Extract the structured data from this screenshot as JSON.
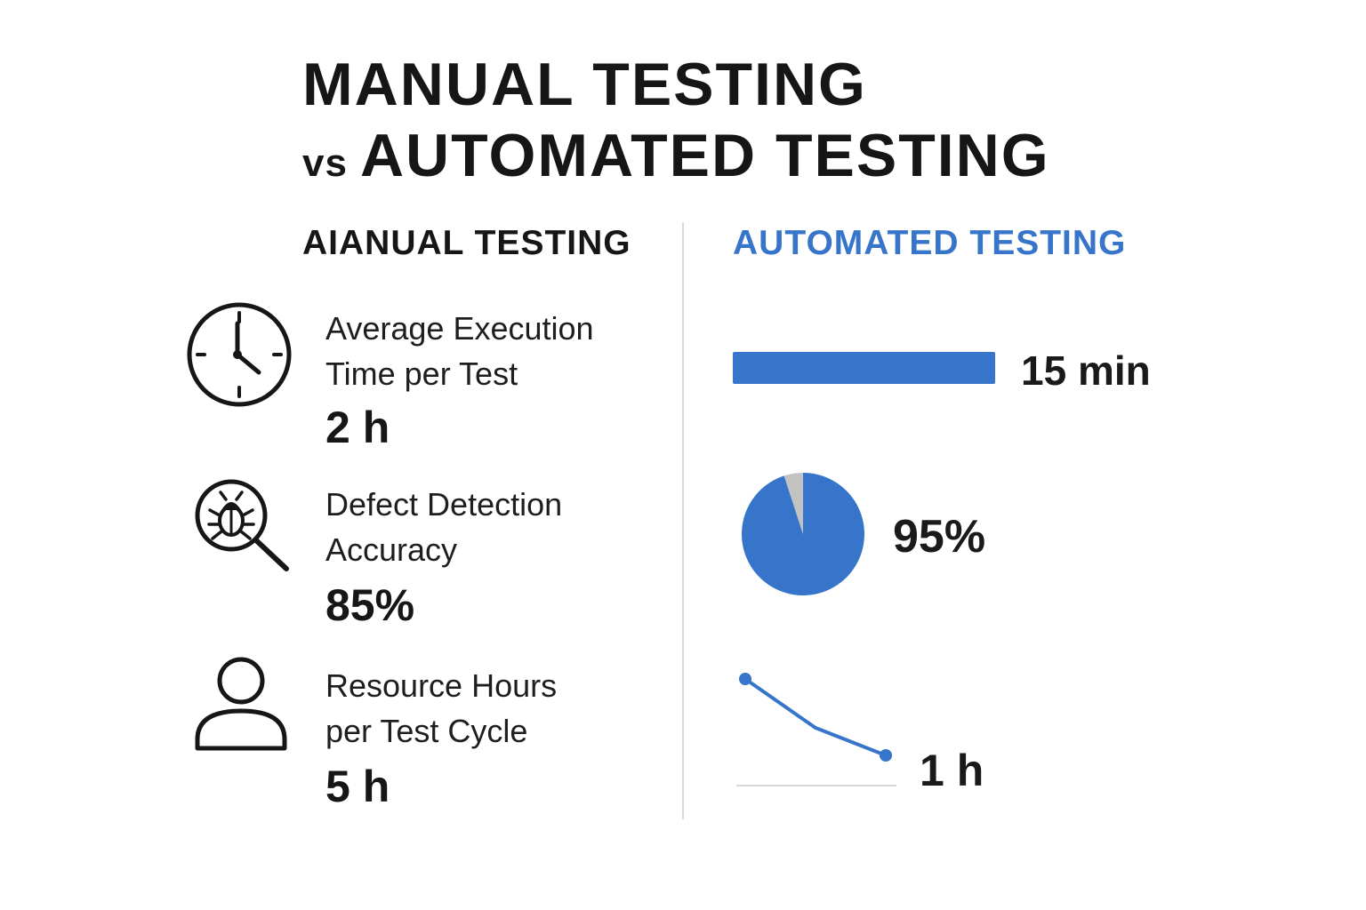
{
  "title": {
    "line1": "MANUAL TESTING",
    "vs": "vs",
    "line2": "AUTOMATED TESTING"
  },
  "columns": {
    "manual_heading": "AIANUAL TESTING",
    "automated_heading": "AUTOMATED TESTING"
  },
  "metrics": [
    {
      "label_line1": "Average Execution",
      "label_line2": "Time per Test",
      "manual_value": "2 h",
      "automated_value": "15 min",
      "icon": "clock-icon"
    },
    {
      "label_line1": "Defect Detection",
      "label_line2": "Accuracy",
      "manual_value": "85%",
      "automated_value": "95%",
      "icon": "bug-magnifier-icon"
    },
    {
      "label_line1": "Resource Hours",
      "label_line2": "per Test Cycle",
      "manual_value": "5 h",
      "automated_value": "1 h",
      "icon": "person-icon"
    }
  ],
  "colors": {
    "accent": "#3675c9",
    "pie_remainder": "#c2c2c2",
    "axis": "#d9d9d9",
    "text": "#161616"
  },
  "chart_data": [
    {
      "type": "bar",
      "categories": [
        "Average Execution Time per Test"
      ],
      "values": [
        15
      ],
      "unit": "min"
    },
    {
      "type": "pie",
      "slices": [
        {
          "value": 95
        },
        {
          "value": 5
        }
      ]
    },
    {
      "type": "line",
      "x": [
        0,
        1,
        2
      ],
      "values": [
        5,
        3,
        1
      ],
      "unit": "h"
    }
  ]
}
